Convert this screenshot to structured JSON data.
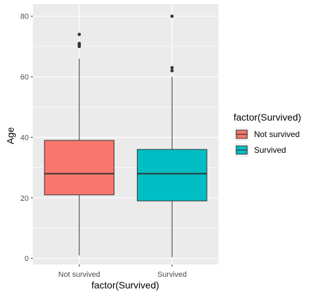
{
  "chart_data": {
    "type": "boxplot",
    "title": "",
    "xlabel": "factor(Survived)",
    "ylabel": "Age",
    "ylim": [
      -2,
      84
    ],
    "y_ticks": [
      0,
      20,
      40,
      60,
      80
    ],
    "grid": true,
    "legend": {
      "title": "factor(Survived)",
      "placement": "right",
      "entries": [
        "Not survived",
        "Survived"
      ]
    },
    "categories": [
      "Not survived",
      "Survived"
    ],
    "series": [
      {
        "name": "Not survived",
        "color": "#F8766D",
        "whisker_low": 1,
        "q1": 21,
        "median": 28,
        "q3": 39,
        "whisker_high": 66,
        "outliers": [
          70,
          70.5,
          71,
          74
        ]
      },
      {
        "name": "Survived",
        "color": "#00BFC4",
        "whisker_low": 0.4,
        "q1": 19,
        "median": 28,
        "q3": 36,
        "whisker_high": 60,
        "outliers": [
          62,
          63,
          80
        ]
      }
    ]
  },
  "theme": {
    "panel_bg": "#EBEBEB",
    "grid_major": "#FFFFFF",
    "box_line": "#333333",
    "tick_color": "#333333"
  }
}
